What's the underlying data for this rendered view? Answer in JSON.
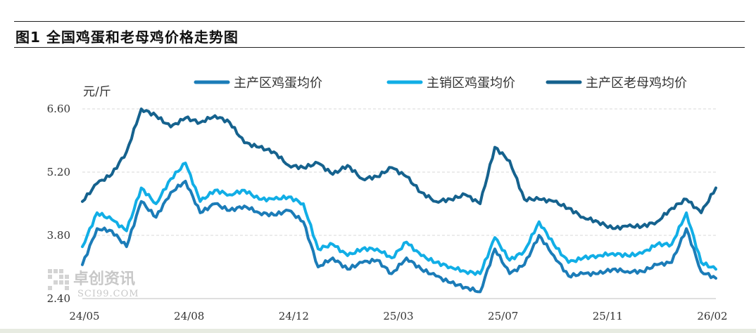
{
  "figure": {
    "title": "图1  全国鸡蛋和老母鸡价格走势图"
  },
  "watermark": {
    "cn": "卓创资讯",
    "en": "SCI99.COM"
  },
  "colors": {
    "series1": "#1b7cb8",
    "series2": "#11aee6",
    "series3": "#15628e",
    "grid": "#d9d9d9",
    "axis": "#bfbfbf"
  },
  "chart_data": {
    "type": "line",
    "unit_label": "元/斤",
    "ylim": [
      2.4,
      6.6
    ],
    "y_ticks": [
      2.4,
      3.8,
      5.2,
      6.6
    ],
    "y_tick_labels": [
      "2.40",
      "3.80",
      "5.20",
      "6.60"
    ],
    "x_ticks": [
      "24/05",
      "24/08",
      "24/12",
      "25/03",
      "25/07",
      "25/11",
      "26/02"
    ],
    "grid": true,
    "legend_position": "top",
    "x": [
      "24/05",
      "24/05",
      "24/06",
      "24/06",
      "24/07",
      "24/07",
      "24/08",
      "24/08",
      "24/09",
      "24/09",
      "24/10",
      "24/10",
      "24/11",
      "24/11",
      "24/12",
      "24/12",
      "25/01",
      "25/01",
      "25/02",
      "25/02",
      "25/03",
      "25/03",
      "25/04",
      "25/04",
      "25/05",
      "25/05",
      "25/06",
      "25/06",
      "25/07",
      "25/07",
      "25/08",
      "25/08",
      "25/09",
      "25/09",
      "25/10",
      "25/10",
      "25/11",
      "25/11",
      "25/12",
      "25/12",
      "26/01",
      "26/01",
      "26/02",
      "26/02"
    ],
    "series": [
      {
        "name": "主产区鸡蛋均价",
        "values": [
          3.15,
          3.95,
          3.9,
          3.55,
          4.55,
          4.2,
          4.75,
          5.0,
          4.3,
          4.5,
          4.35,
          4.45,
          4.3,
          4.25,
          4.35,
          4.1,
          3.1,
          3.3,
          3.05,
          3.2,
          3.25,
          2.95,
          3.3,
          3.05,
          2.9,
          2.75,
          2.65,
          2.55,
          3.5,
          2.95,
          3.15,
          3.8,
          3.35,
          2.9,
          2.95,
          2.95,
          3.05,
          3.0,
          3.0,
          3.15,
          3.2,
          3.95,
          3.0,
          2.85
        ]
      },
      {
        "name": "主销区鸡蛋均价",
        "values": [
          3.55,
          4.3,
          4.15,
          3.9,
          4.85,
          4.5,
          5.05,
          5.4,
          4.55,
          4.8,
          4.7,
          4.8,
          4.6,
          4.6,
          4.65,
          4.5,
          3.5,
          3.6,
          3.35,
          3.5,
          3.5,
          3.3,
          3.65,
          3.35,
          3.2,
          3.1,
          3.0,
          2.95,
          3.75,
          3.25,
          3.45,
          4.1,
          3.6,
          3.2,
          3.3,
          3.35,
          3.4,
          3.35,
          3.4,
          3.6,
          3.6,
          4.3,
          3.2,
          3.05
        ]
      },
      {
        "name": "主产区老母鸡均价",
        "values": [
          4.55,
          4.95,
          5.15,
          5.65,
          6.6,
          6.45,
          6.2,
          6.4,
          6.3,
          6.45,
          6.3,
          5.85,
          5.75,
          5.65,
          5.35,
          5.3,
          5.4,
          5.15,
          5.35,
          5.05,
          5.1,
          5.3,
          5.1,
          4.75,
          4.55,
          4.6,
          4.7,
          4.5,
          5.75,
          5.45,
          4.6,
          4.6,
          4.55,
          4.4,
          4.2,
          4.1,
          3.95,
          4.0,
          4.0,
          4.1,
          4.4,
          4.6,
          4.3,
          4.85
        ]
      }
    ]
  }
}
